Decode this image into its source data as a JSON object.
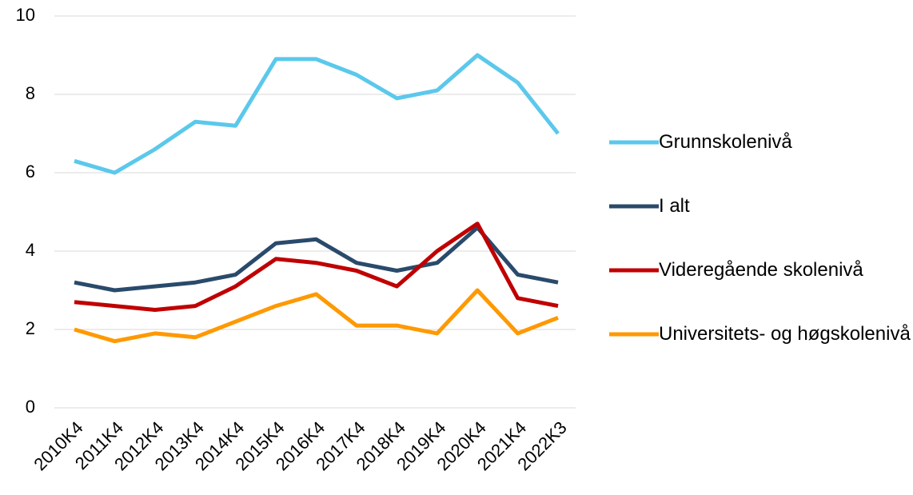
{
  "chart_data": {
    "type": "line",
    "categories": [
      "2010K4",
      "2011K4",
      "2012K4",
      "2013K4",
      "2014K4",
      "2015K4",
      "2016K4",
      "2017K4",
      "2018K4",
      "2019K4",
      "2020K4",
      "2021K4",
      "2022K3"
    ],
    "series": [
      {
        "name": "Grunnskolenivå",
        "color": "#5bc8ec",
        "values": [
          6.3,
          6.0,
          6.6,
          7.3,
          7.2,
          8.9,
          8.9,
          8.5,
          7.9,
          8.1,
          9.0,
          8.3,
          7.0
        ]
      },
      {
        "name": "I alt",
        "color": "#2a4a6b",
        "values": [
          3.2,
          3.0,
          3.1,
          3.2,
          3.4,
          4.2,
          4.3,
          3.7,
          3.5,
          3.7,
          4.6,
          3.4,
          3.2
        ]
      },
      {
        "name": "Videregående skolenivå",
        "color": "#c00000",
        "values": [
          2.7,
          2.6,
          2.5,
          2.6,
          3.1,
          3.8,
          3.7,
          3.5,
          3.1,
          4.0,
          4.7,
          2.8,
          2.6
        ]
      },
      {
        "name": "Universitets- og høgskolenivå",
        "color": "#ff9900",
        "values": [
          2.0,
          1.7,
          1.9,
          1.8,
          2.2,
          2.6,
          2.9,
          2.1,
          2.1,
          1.9,
          3.0,
          1.9,
          2.3
        ]
      }
    ],
    "ylim": [
      0,
      10
    ],
    "yticks": [
      0,
      2,
      4,
      6,
      8,
      10
    ],
    "grid": true,
    "legend": "right"
  }
}
